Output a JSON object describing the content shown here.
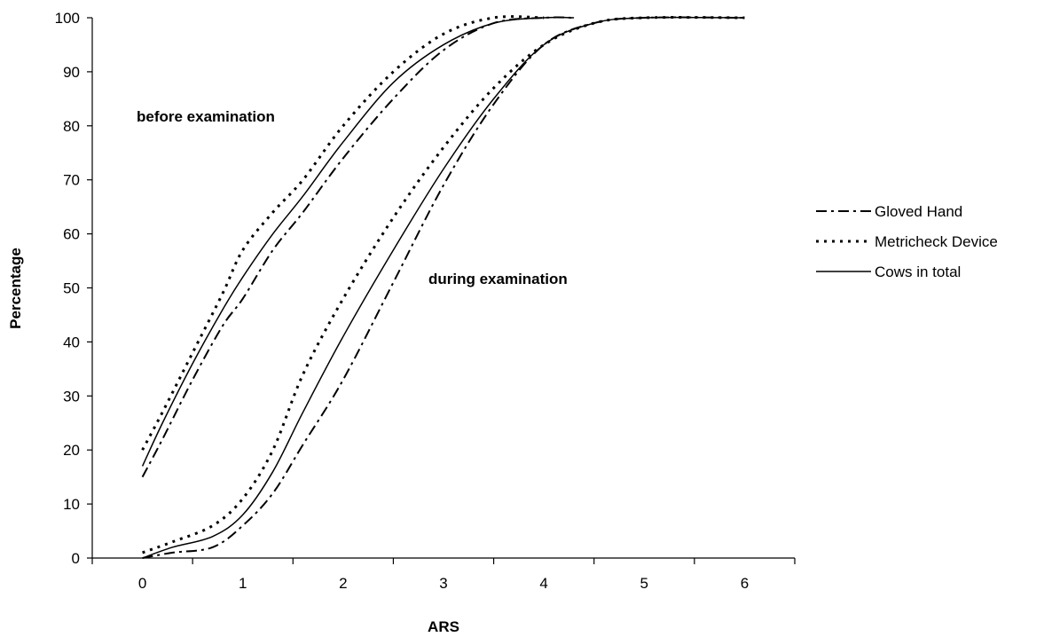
{
  "chart_data": {
    "type": "line",
    "xlabel": "ARS",
    "ylabel": "Percentage",
    "xlim": [
      -0.5,
      6.5
    ],
    "ylim": [
      0,
      100
    ],
    "x_ticks": [
      0,
      1,
      2,
      3,
      4,
      5,
      6
    ],
    "y_ticks": [
      0,
      10,
      20,
      30,
      40,
      50,
      60,
      70,
      80,
      90,
      100
    ],
    "grid": false,
    "legend_position": "right",
    "annotations": [
      {
        "text": "before examination",
        "x": -0.05,
        "y": 82
      },
      {
        "text": "during examination",
        "x": 2.82,
        "y": 52
      }
    ],
    "series": [
      {
        "name": "Gloved Hand",
        "style": "dashdot",
        "color": "#000000",
        "group": "before examination",
        "points": [
          [
            0,
            15
          ],
          [
            0.2,
            22
          ],
          [
            0.5,
            33
          ],
          [
            0.8,
            43
          ],
          [
            1.0,
            48
          ],
          [
            1.3,
            57
          ],
          [
            1.6,
            64
          ],
          [
            2.0,
            74
          ],
          [
            2.5,
            85
          ],
          [
            3.0,
            94
          ],
          [
            3.5,
            99
          ],
          [
            4.0,
            100
          ],
          [
            4.3,
            100
          ]
        ]
      },
      {
        "name": "Metricheck Device",
        "style": "dotted",
        "color": "#000000",
        "group": "before examination",
        "points": [
          [
            0,
            20
          ],
          [
            0.2,
            27
          ],
          [
            0.5,
            38
          ],
          [
            0.8,
            49
          ],
          [
            1.0,
            57
          ],
          [
            1.3,
            64
          ],
          [
            1.6,
            70
          ],
          [
            2.0,
            80
          ],
          [
            2.5,
            90
          ],
          [
            3.0,
            97
          ],
          [
            3.5,
            100
          ],
          [
            4.0,
            100
          ]
        ]
      },
      {
        "name": "Cows in total",
        "style": "solid",
        "color": "#000000",
        "group": "before examination",
        "points": [
          [
            0,
            17
          ],
          [
            0.2,
            25
          ],
          [
            0.5,
            36
          ],
          [
            0.8,
            46
          ],
          [
            1.0,
            52
          ],
          [
            1.3,
            60
          ],
          [
            1.6,
            67
          ],
          [
            2.0,
            77
          ],
          [
            2.5,
            88
          ],
          [
            3.0,
            95
          ],
          [
            3.5,
            99
          ],
          [
            4.0,
            100
          ],
          [
            4.3,
            100
          ]
        ]
      },
      {
        "name": "Gloved Hand",
        "style": "dashdot",
        "color": "#000000",
        "group": "during examination",
        "points": [
          [
            0,
            0
          ],
          [
            0.3,
            1
          ],
          [
            0.7,
            2
          ],
          [
            1.0,
            6
          ],
          [
            1.3,
            12
          ],
          [
            1.6,
            21
          ],
          [
            2.0,
            33
          ],
          [
            2.5,
            51
          ],
          [
            3.0,
            69
          ],
          [
            3.5,
            84
          ],
          [
            4.0,
            95
          ],
          [
            4.5,
            99
          ],
          [
            5.0,
            100
          ],
          [
            6.0,
            100
          ]
        ]
      },
      {
        "name": "Metricheck Device",
        "style": "dotted",
        "color": "#000000",
        "group": "during examination",
        "points": [
          [
            0,
            1
          ],
          [
            0.3,
            3
          ],
          [
            0.7,
            6
          ],
          [
            1.0,
            11
          ],
          [
            1.3,
            20
          ],
          [
            1.6,
            34
          ],
          [
            2.0,
            48
          ],
          [
            2.5,
            63
          ],
          [
            3.0,
            76
          ],
          [
            3.5,
            87
          ],
          [
            4.0,
            95
          ],
          [
            4.5,
            99
          ],
          [
            5.0,
            100
          ],
          [
            6.0,
            100
          ]
        ]
      },
      {
        "name": "Cows in total",
        "style": "solid",
        "color": "#000000",
        "group": "during examination",
        "points": [
          [
            0,
            0
          ],
          [
            0.3,
            2
          ],
          [
            0.7,
            4
          ],
          [
            1.0,
            8
          ],
          [
            1.3,
            16
          ],
          [
            1.6,
            27
          ],
          [
            2.0,
            41
          ],
          [
            2.5,
            57
          ],
          [
            3.0,
            72
          ],
          [
            3.5,
            85
          ],
          [
            4.0,
            95
          ],
          [
            4.5,
            99
          ],
          [
            5.0,
            100
          ],
          [
            6.0,
            100
          ]
        ]
      }
    ],
    "legend": [
      {
        "label": "Gloved Hand",
        "style": "dashdot"
      },
      {
        "label": "Metricheck Device",
        "style": "dotted"
      },
      {
        "label": "Cows in total",
        "style": "solid"
      }
    ]
  }
}
